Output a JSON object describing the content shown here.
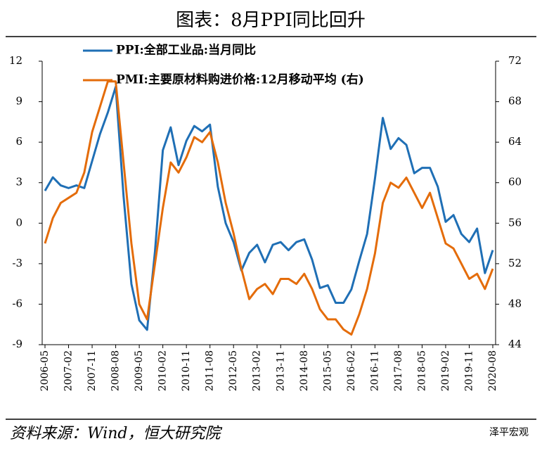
{
  "chart_data": {
    "type": "line",
    "title": "图表：8月PPI同比回升",
    "source": "资料来源：Wind，恒大研究院",
    "watermark": "泽平宏观",
    "categories": [
      "2006-05",
      null,
      null,
      "2007-02",
      null,
      null,
      "2007-11",
      null,
      null,
      "2008-08",
      null,
      null,
      "2009-05",
      null,
      null,
      "2010-02",
      null,
      null,
      "2010-11",
      null,
      null,
      "2011-08",
      null,
      null,
      "2012-05",
      null,
      null,
      "2013-02",
      null,
      null,
      "2013-11",
      null,
      null,
      "2014-08",
      null,
      null,
      "2015-05",
      null,
      null,
      "2016-02",
      null,
      null,
      "2016-11",
      null,
      null,
      "2017-08",
      null,
      null,
      "2018-05",
      null,
      null,
      "2019-02",
      null,
      null,
      "2019-11",
      null,
      null,
      "2020-08"
    ],
    "series": [
      {
        "name": "PPI:全部工业品:当月同比",
        "color": "#1f6fb5",
        "values": [
          2.4,
          3.4,
          2.8,
          2.6,
          2.8,
          2.6,
          4.6,
          6.6,
          8.2,
          10.1,
          2.0,
          -4.5,
          -7.2,
          -7.9,
          -2.1,
          5.4,
          7.1,
          4.3,
          6.1,
          7.2,
          6.8,
          7.3,
          2.7,
          0.0,
          -1.4,
          -3.5,
          -2.2,
          -1.6,
          -2.9,
          -1.6,
          -1.4,
          -2.0,
          -1.4,
          -1.2,
          -2.7,
          -4.8,
          -4.6,
          -5.9,
          -5.9,
          -4.9,
          -2.8,
          -0.8,
          3.3,
          7.8,
          5.5,
          6.3,
          5.8,
          3.7,
          4.1,
          4.1,
          2.7,
          0.1,
          0.6,
          -0.8,
          -1.4,
          -0.4,
          -3.7,
          -2.0
        ]
      },
      {
        "name": "PMI:主要原材料购进价格:12月移动平均 (右)",
        "color": "#e46c0a",
        "axis": "y2",
        "values": [
          54,
          56.5,
          58,
          58.5,
          59,
          61,
          65,
          67.5,
          70,
          70,
          62,
          54,
          48,
          46.5,
          52,
          57.5,
          62,
          61,
          62.5,
          64.5,
          64,
          65,
          62,
          58,
          55,
          51.5,
          48.5,
          49.5,
          50,
          49,
          50.5,
          50.5,
          50,
          51,
          49.5,
          47.5,
          46.5,
          46.5,
          45.5,
          45,
          47,
          49.5,
          53,
          58,
          60,
          59.5,
          60.5,
          59,
          57.5,
          59,
          56.5,
          54,
          53.5,
          52,
          50.5,
          51,
          49.5,
          51.5
        ]
      }
    ],
    "ylim": [
      -9,
      12
    ],
    "yticks": [
      -9,
      -6,
      -3,
      0,
      3,
      6,
      9,
      12
    ],
    "y2lim": [
      44,
      72
    ],
    "y2ticks": [
      44,
      48,
      52,
      56,
      60,
      64,
      68,
      72
    ]
  }
}
